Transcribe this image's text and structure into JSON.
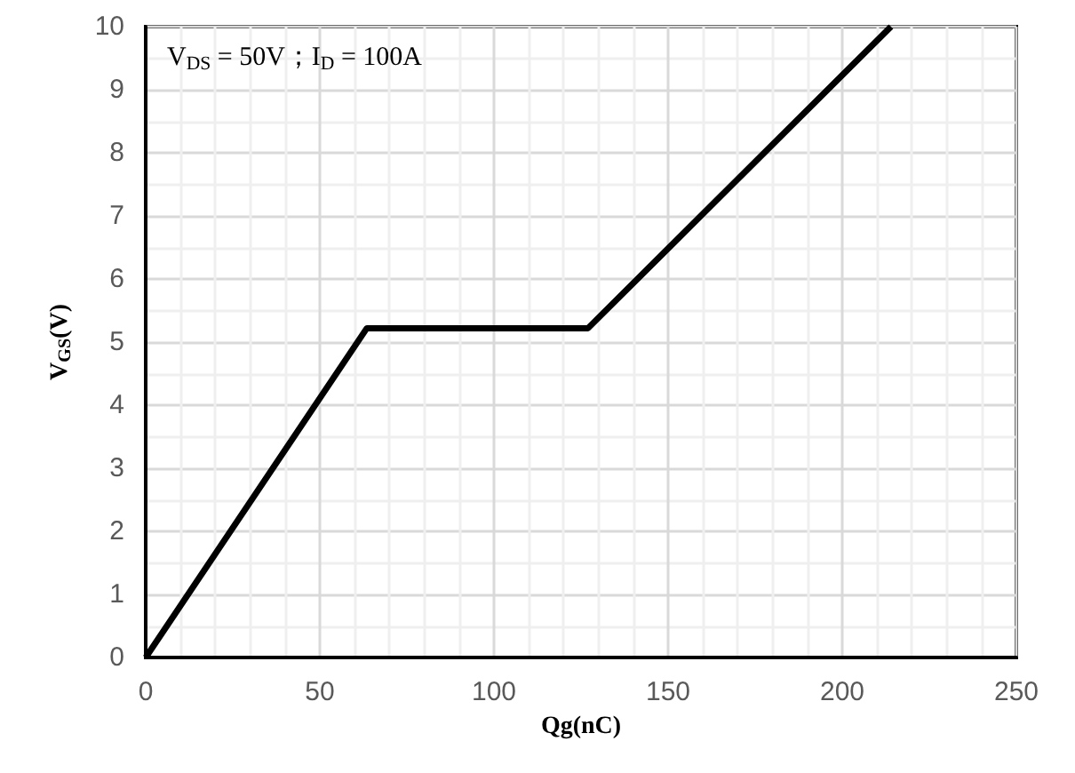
{
  "chart_data": {
    "type": "line",
    "xlabel": "Qg(nC)",
    "ylabel": "V$_{GS}$(V)",
    "annotations": [
      "V$_{DS}$ = 50V；I$_{D}$ = 100A"
    ],
    "series": [
      {
        "color": "#000000",
        "x": [
          0,
          63.5,
          127,
          214
        ],
        "values": [
          0,
          5.22,
          5.22,
          10
        ]
      }
    ],
    "xlim": [
      0,
      250
    ],
    "xticks": [
      0,
      50,
      100,
      150,
      200,
      250
    ],
    "ylim": [
      0,
      10
    ],
    "yticks": [
      0,
      1,
      2,
      3,
      4,
      5,
      6,
      7,
      8,
      9,
      10
    ],
    "grid": true,
    "marker": "none",
    "line_style": "solid"
  }
}
